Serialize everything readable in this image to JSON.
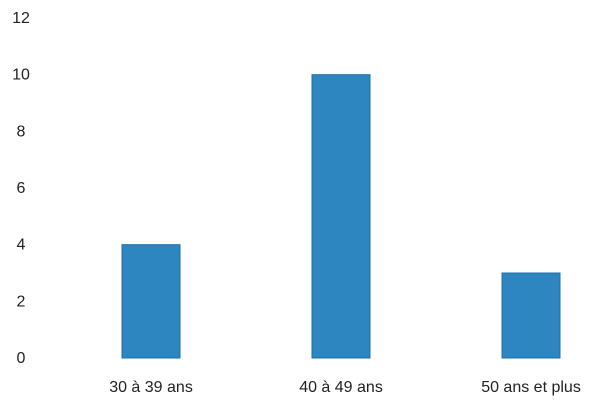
{
  "chart_data": {
    "type": "bar",
    "categories": [
      "30 à 39 ans",
      "40 à 49 ans",
      "50 ans et plus"
    ],
    "values": [
      4,
      10,
      3
    ],
    "title": "",
    "xlabel": "",
    "ylabel": "",
    "ylim": [
      0,
      12
    ],
    "yticks": [
      0,
      2,
      4,
      6,
      8,
      10,
      12
    ],
    "grid": false,
    "legend": "none",
    "bar_color": "#2E86C1",
    "bar_edge_color": "#1F6FA8"
  }
}
